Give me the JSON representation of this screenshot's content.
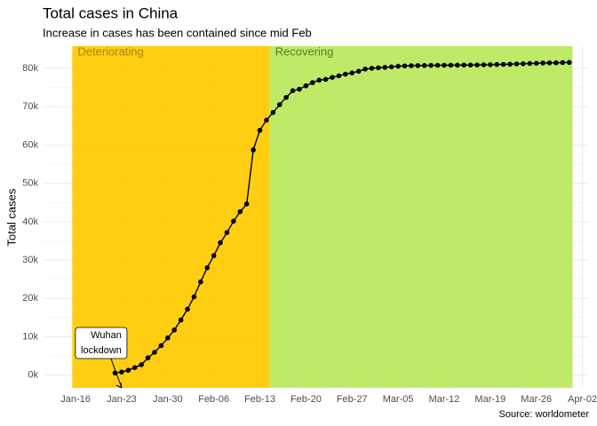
{
  "chart_data": {
    "type": "line",
    "title": "Total cases in China",
    "subtitle": "Increase in cases has been contained since mid Feb",
    "y_label": "Total cases",
    "source": "Source: worldometer",
    "x": [
      "Jan-22",
      "Jan-23",
      "Jan-24",
      "Jan-25",
      "Jan-26",
      "Jan-27",
      "Jan-28",
      "Jan-29",
      "Jan-30",
      "Jan-31",
      "Feb-01",
      "Feb-02",
      "Feb-03",
      "Feb-04",
      "Feb-05",
      "Feb-06",
      "Feb-07",
      "Feb-08",
      "Feb-09",
      "Feb-10",
      "Feb-11",
      "Feb-12",
      "Feb-13",
      "Feb-14",
      "Feb-15",
      "Feb-16",
      "Feb-17",
      "Feb-18",
      "Feb-19",
      "Feb-20",
      "Feb-21",
      "Feb-22",
      "Feb-23",
      "Feb-24",
      "Feb-25",
      "Feb-26",
      "Feb-27",
      "Feb-28",
      "Feb-29",
      "Mar-01",
      "Mar-02",
      "Mar-03",
      "Mar-04",
      "Mar-05",
      "Mar-06",
      "Mar-07",
      "Mar-08",
      "Mar-09",
      "Mar-10",
      "Mar-11",
      "Mar-12",
      "Mar-13",
      "Mar-14",
      "Mar-15",
      "Mar-16",
      "Mar-17",
      "Mar-18",
      "Mar-19",
      "Mar-20",
      "Mar-21",
      "Mar-22",
      "Mar-23",
      "Mar-24",
      "Mar-25",
      "Mar-26",
      "Mar-27",
      "Mar-28",
      "Mar-29",
      "Mar-30",
      "Mar-31"
    ],
    "values": [
      571,
      830,
      1287,
      1975,
      2744,
      4515,
      5974,
      7711,
      9692,
      11791,
      14380,
      17205,
      20438,
      24324,
      28018,
      31161,
      34546,
      37198,
      40171,
      42638,
      44653,
      58761,
      63851,
      66492,
      68500,
      70548,
      72436,
      74185,
      74576,
      75465,
      76288,
      76936,
      77150,
      77658,
      78064,
      78497,
      78824,
      79251,
      79824,
      80026,
      80151,
      80270,
      80409,
      80552,
      80651,
      80695,
      80735,
      80754,
      80778,
      80793,
      80813,
      80824,
      80844,
      80860,
      80881,
      80894,
      80928,
      80967,
      81008,
      81054,
      81093,
      81171,
      81218,
      81285,
      81340,
      81394,
      81439,
      81470,
      81518,
      81554
    ],
    "color": "#000000",
    "xlim": [
      "Jan-11",
      "Apr-03"
    ],
    "xticks": [
      "Jan-16",
      "Jan-23",
      "Jan-30",
      "Feb-06",
      "Feb-13",
      "Feb-20",
      "Feb-27",
      "Mar-05",
      "Mar-12",
      "Mar-19",
      "Mar-26",
      "Apr-02"
    ],
    "ylim": [
      -3300,
      85800
    ],
    "yticks": [
      {
        "value": 0,
        "label": "0k"
      },
      {
        "value": 10000,
        "label": "10k"
      },
      {
        "value": 20000,
        "label": "20k"
      },
      {
        "value": 30000,
        "label": "30k"
      },
      {
        "value": 40000,
        "label": "40k"
      },
      {
        "value": 50000,
        "label": "50k"
      },
      {
        "value": 60000,
        "label": "60k"
      },
      {
        "value": 70000,
        "label": "70k"
      },
      {
        "value": 80000,
        "label": "80k"
      }
    ],
    "grid": true,
    "regions": [
      {
        "label": "Deteriorating",
        "start": "Jan-16",
        "end": "Feb-14",
        "color": "#ffcb05",
        "text_color": "#a8860d"
      },
      {
        "label": "Recovering",
        "start": "Feb-15",
        "end": "Mar-31",
        "color": "#bbe95f",
        "text_color": "#5a7f1e"
      }
    ],
    "annotation": {
      "lines": [
        "Wuhan",
        "lockdown"
      ],
      "at": "Jan-23"
    }
  }
}
